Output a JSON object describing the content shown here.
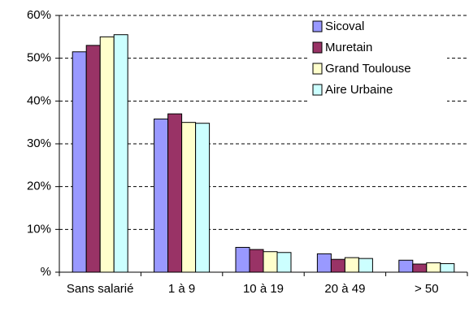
{
  "chart_data": {
    "type": "bar",
    "categories": [
      "Sans salarié",
      "1 à 9",
      "10 à 19",
      "20 à 49",
      "> 50"
    ],
    "series": [
      {
        "name": "Sicoval",
        "color": "#9999ff",
        "values": [
          51.5,
          35.8,
          5.8,
          4.3,
          2.8
        ]
      },
      {
        "name": "Muretain",
        "color": "#993366",
        "values": [
          53,
          37,
          5.3,
          3,
          1.9
        ]
      },
      {
        "name": "Grand Toulouse",
        "color": "#ffffcc",
        "values": [
          55,
          35,
          4.8,
          3.4,
          2.2
        ]
      },
      {
        "name": "Aire Urbaine",
        "color": "#ccffff",
        "values": [
          55.5,
          34.8,
          4.6,
          3.2,
          2
        ]
      }
    ],
    "ylim": [
      0,
      60
    ],
    "yticks": [
      {
        "value": 0,
        "label": "%"
      },
      {
        "value": 10,
        "label": "10%"
      },
      {
        "value": 20,
        "label": "20%"
      },
      {
        "value": 30,
        "label": "30%"
      },
      {
        "value": 40,
        "label": "40%"
      },
      {
        "value": 50,
        "label": "50%"
      },
      {
        "value": 60,
        "label": "60%"
      }
    ],
    "grid": true,
    "legend": "top-right"
  }
}
